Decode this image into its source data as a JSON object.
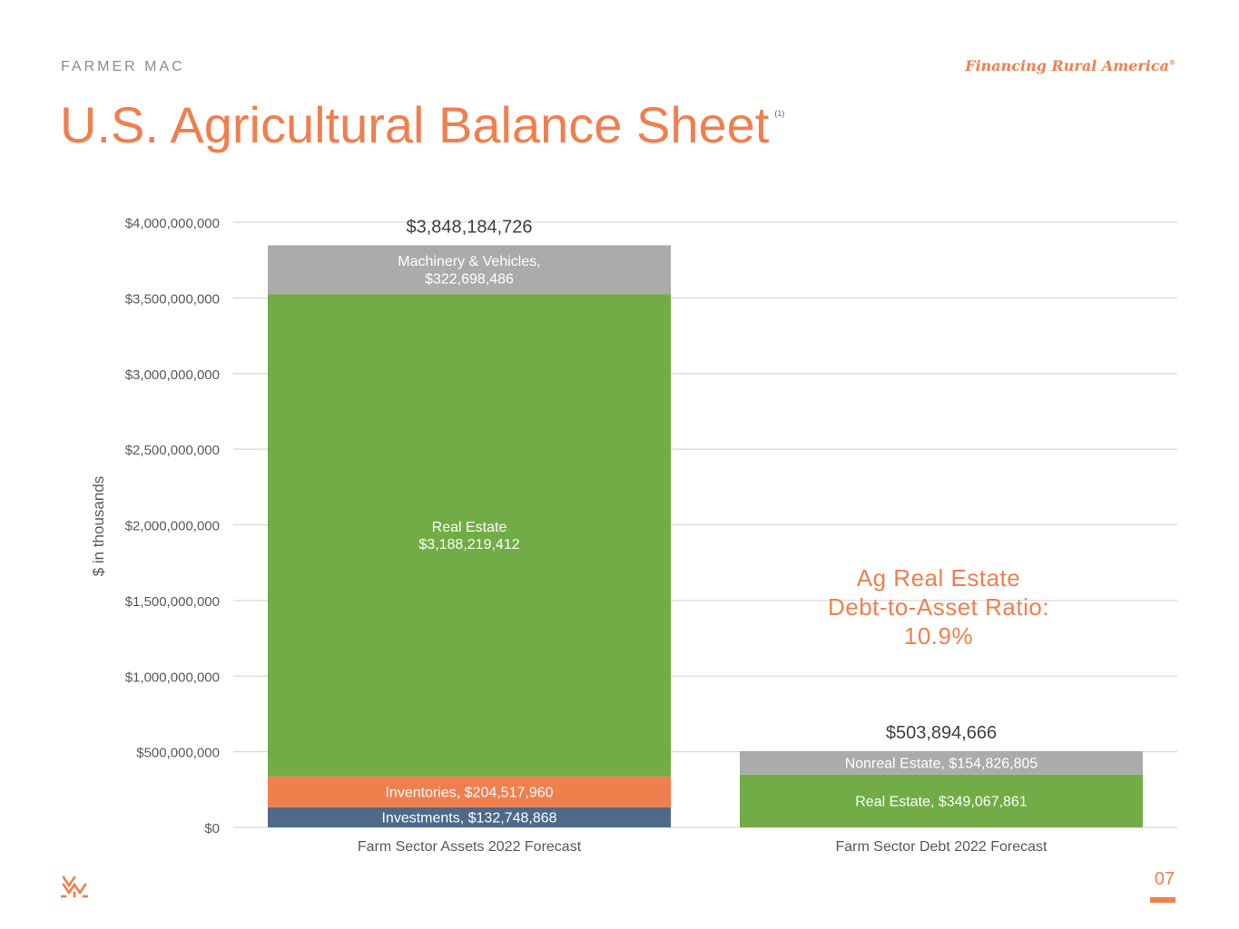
{
  "header": {
    "brand": "FARMER MAC",
    "tagline": "Financing Rural America",
    "tagline_mark": "®",
    "title": "U.S. Agricultural Balance Sheet",
    "title_footnote": "(1)"
  },
  "footer": {
    "page_number": "07"
  },
  "colors": {
    "accent": "#f07f4e",
    "green": "#72ac46",
    "gray": "#ababab",
    "blue": "#4e6989",
    "grid": "#d9d9d9",
    "axis_text": "#595959"
  },
  "chart_data": {
    "type": "bar",
    "stacked": true,
    "ylabel": "$ in thousands",
    "ylim": [
      0,
      4000000000
    ],
    "yticks": [
      0,
      500000000,
      1000000000,
      1500000000,
      2000000000,
      2500000000,
      3000000000,
      3500000000,
      4000000000
    ],
    "ytick_labels": [
      "$0",
      "$500,000,000",
      "$1,000,000,000",
      "$1,500,000,000",
      "$2,000,000,000",
      "$2,500,000,000",
      "$3,000,000,000",
      "$3,500,000,000",
      "$4,000,000,000"
    ],
    "categories": [
      "Farm Sector Assets 2022 Forecast",
      "Farm Sector Debt 2022 Forecast"
    ],
    "totals": [
      3848184726,
      503894666
    ],
    "total_labels": [
      "$3,848,184,726",
      "$503,894,666"
    ],
    "stacks": [
      [
        {
          "name": "Investments",
          "value": 132748868,
          "color": "#4e6989",
          "label": [
            "Investments, $132,748,868"
          ]
        },
        {
          "name": "Inventories",
          "value": 204517960,
          "color": "#f07f4e",
          "label": [
            "Inventories, $204,517,960"
          ]
        },
        {
          "name": "Real Estate",
          "value": 3188219412,
          "color": "#72ac46",
          "label": [
            "Real Estate",
            "$3,188,219,412"
          ]
        },
        {
          "name": "Machinery & Vehicles",
          "value": 322698486,
          "color": "#ababab",
          "label": [
            "Machinery & Vehicles,",
            "$322,698,486"
          ]
        }
      ],
      [
        {
          "name": "Real Estate",
          "value": 349067861,
          "color": "#72ac46",
          "label": [
            "Real Estate, $349,067,861"
          ]
        },
        {
          "name": "Nonreal Estate",
          "value": 154826805,
          "color": "#ababab",
          "label": [
            "Nonreal Estate, $154,826,805"
          ]
        }
      ]
    ],
    "annotation": [
      "Ag Real Estate",
      "Debt-to-Asset Ratio:",
      "10.9%"
    ]
  }
}
